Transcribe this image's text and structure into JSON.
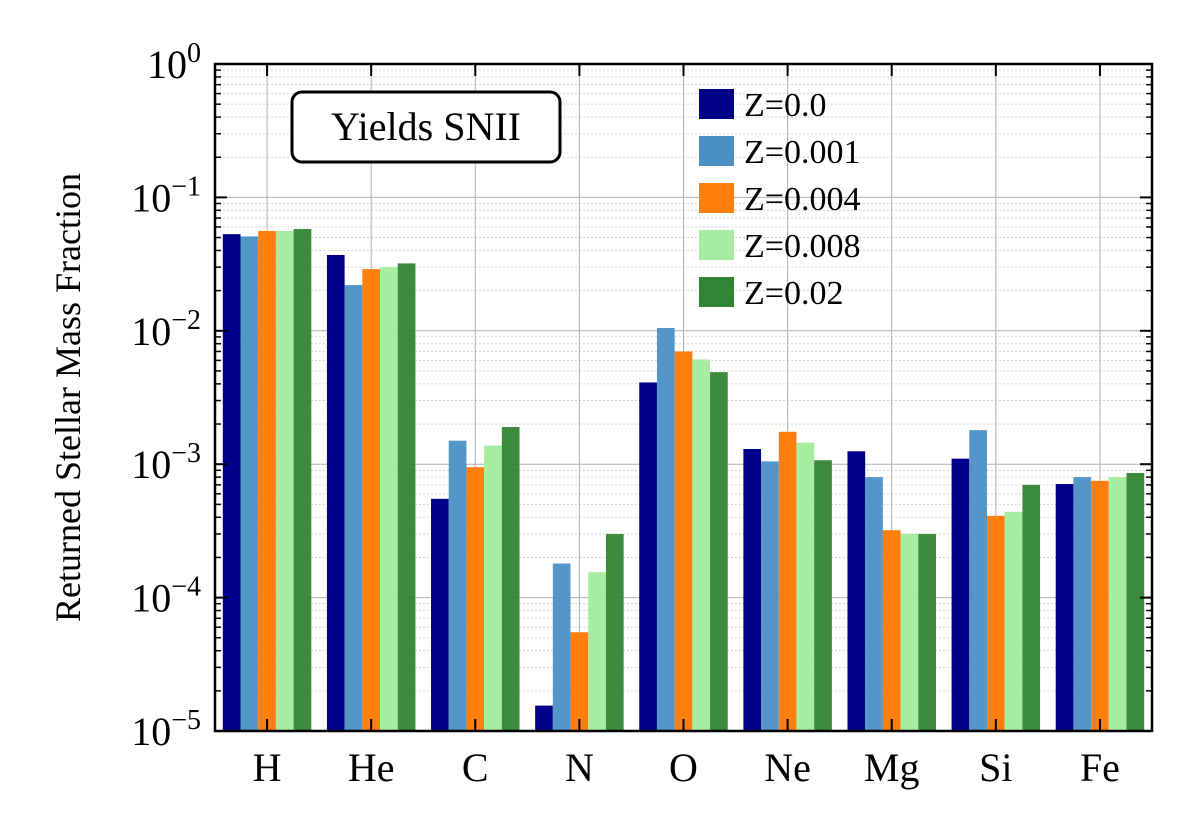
{
  "chart_data": {
    "type": "bar",
    "title": "",
    "xlabel": "",
    "ylabel": "Returned Stellar Mass Fraction",
    "yscale": "log",
    "ylim": [
      1e-05,
      1
    ],
    "y_ticks": [
      {
        "base": "10",
        "exp": "−5"
      },
      {
        "base": "10",
        "exp": "−4"
      },
      {
        "base": "10",
        "exp": "−3"
      },
      {
        "base": "10",
        "exp": "−2"
      },
      {
        "base": "10",
        "exp": "−1"
      },
      {
        "base": "10",
        "exp": "0"
      }
    ],
    "grid": true,
    "legend_position": "top-right",
    "annotation": "Yields SNII",
    "categories": [
      "H",
      "He",
      "C",
      "N",
      "O",
      "Ne",
      "Mg",
      "Si",
      "Fe"
    ],
    "series": [
      {
        "name": "Z=0.0",
        "color": "#00008b",
        "values": [
          0.053,
          0.037,
          0.00055,
          1.55e-05,
          0.0041,
          0.0013,
          0.00125,
          0.0011,
          0.00071
        ]
      },
      {
        "name": "Z=0.001",
        "color": "#4a90c4",
        "values": [
          0.051,
          0.022,
          0.0015,
          0.00018,
          0.0105,
          0.00105,
          0.0008,
          0.0018,
          0.0008
        ]
      },
      {
        "name": "Z=0.004",
        "color": "#ff7f0e",
        "values": [
          0.056,
          0.029,
          0.00095,
          5.5e-05,
          0.007,
          0.00175,
          0.00032,
          0.00041,
          0.00075
        ]
      },
      {
        "name": "Z=0.008",
        "color": "#a6eda1",
        "values": [
          0.056,
          0.03,
          0.00138,
          0.000155,
          0.0061,
          0.00145,
          0.0003,
          0.00044,
          0.0008
        ]
      },
      {
        "name": "Z=0.02",
        "color": "#338533",
        "values": [
          0.058,
          0.032,
          0.0019,
          0.0003,
          0.0049,
          0.00107,
          0.0003,
          0.0007,
          0.00086
        ]
      }
    ]
  }
}
